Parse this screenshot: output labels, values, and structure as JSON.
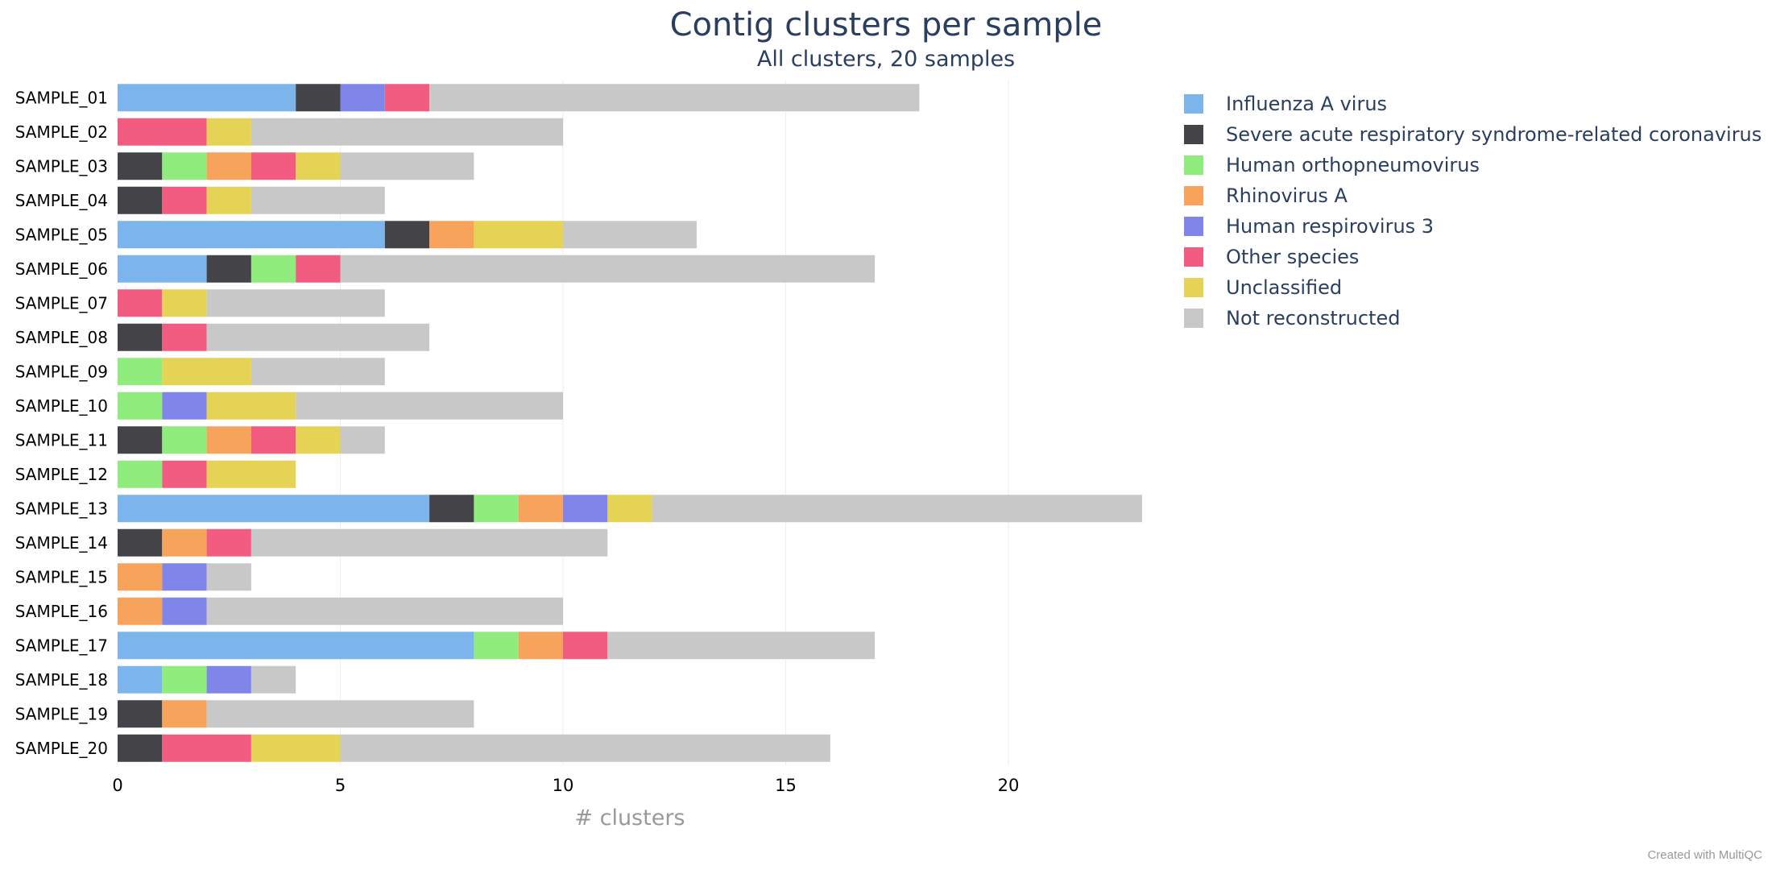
{
  "credit": "Created with MultiQC",
  "chart_data": {
    "type": "bar",
    "orientation": "horizontal",
    "stacked": true,
    "title": "Contig clusters per sample",
    "subtitle": "All clusters, 20 samples",
    "xlabel": "# clusters",
    "ylabel": "",
    "xlim": [
      0,
      23
    ],
    "xticks": [
      0,
      5,
      10,
      15,
      20
    ],
    "grid": true,
    "legend_position": "right",
    "categories": [
      "SAMPLE_01",
      "SAMPLE_02",
      "SAMPLE_03",
      "SAMPLE_04",
      "SAMPLE_05",
      "SAMPLE_06",
      "SAMPLE_07",
      "SAMPLE_08",
      "SAMPLE_09",
      "SAMPLE_10",
      "SAMPLE_11",
      "SAMPLE_12",
      "SAMPLE_13",
      "SAMPLE_14",
      "SAMPLE_15",
      "SAMPLE_16",
      "SAMPLE_17",
      "SAMPLE_18",
      "SAMPLE_19",
      "SAMPLE_20"
    ],
    "series": [
      {
        "name": "Influenza A virus",
        "color": "#7cb5ec",
        "values": [
          4,
          0,
          0,
          0,
          6,
          2,
          0,
          0,
          0,
          0,
          0,
          0,
          7,
          0,
          0,
          0,
          8,
          1,
          0,
          0
        ]
      },
      {
        "name": "Severe acute respiratory syndrome-related coronavirus",
        "color": "#434348",
        "values": [
          1,
          0,
          1,
          1,
          1,
          1,
          0,
          1,
          0,
          0,
          1,
          0,
          1,
          1,
          0,
          0,
          0,
          0,
          1,
          1
        ]
      },
      {
        "name": "Human orthopneumovirus",
        "color": "#90ed7d",
        "values": [
          0,
          0,
          1,
          0,
          0,
          1,
          0,
          0,
          1,
          1,
          1,
          1,
          1,
          0,
          0,
          0,
          1,
          1,
          0,
          0
        ]
      },
      {
        "name": "Rhinovirus A",
        "color": "#f7a35c",
        "values": [
          0,
          0,
          1,
          0,
          1,
          0,
          0,
          0,
          0,
          0,
          1,
          0,
          1,
          1,
          1,
          1,
          1,
          0,
          1,
          0
        ]
      },
      {
        "name": "Human respirovirus 3",
        "color": "#8085e9",
        "values": [
          1,
          0,
          0,
          0,
          0,
          0,
          0,
          0,
          0,
          1,
          0,
          0,
          1,
          0,
          1,
          1,
          0,
          1,
          0,
          0
        ]
      },
      {
        "name": "Other species",
        "color": "#f15c80",
        "values": [
          1,
          2,
          1,
          1,
          0,
          1,
          1,
          1,
          0,
          0,
          1,
          1,
          0,
          1,
          0,
          0,
          1,
          0,
          0,
          2
        ]
      },
      {
        "name": "Unclassified",
        "color": "#e4d354",
        "values": [
          0,
          1,
          1,
          1,
          2,
          0,
          1,
          0,
          2,
          2,
          1,
          2,
          1,
          0,
          0,
          0,
          0,
          0,
          0,
          2
        ]
      },
      {
        "name": "Not reconstructed",
        "color": "#c8c8c8",
        "values": [
          11,
          7,
          3,
          3,
          3,
          12,
          4,
          5,
          3,
          6,
          1,
          0,
          11,
          8,
          1,
          8,
          6,
          1,
          6,
          11
        ]
      }
    ]
  }
}
